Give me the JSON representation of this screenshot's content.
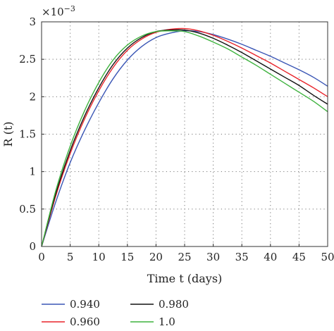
{
  "chart_data": {
    "type": "line",
    "xlabel": "Time t (days)",
    "ylabel": "R (t)",
    "y_multiplier": "×10",
    "y_exponent": "−3",
    "xlim": [
      0,
      50
    ],
    "ylim": [
      0,
      3
    ],
    "x_ticks": [
      0,
      5,
      10,
      15,
      20,
      25,
      30,
      35,
      40,
      45,
      50
    ],
    "y_ticks": [
      0,
      0.5,
      1,
      1.5,
      2,
      2.5,
      3
    ],
    "x_tick_labels": [
      "0",
      "5",
      "10",
      "15",
      "20",
      "25",
      "30",
      "35",
      "40",
      "45",
      "50"
    ],
    "y_tick_labels": [
      "0",
      "0.5",
      "1",
      "1.5",
      "2",
      "2.5",
      "3"
    ],
    "grid": true,
    "legend_position": "bottom",
    "x": [
      0,
      2.5,
      5,
      7.5,
      10,
      12.5,
      15,
      17.5,
      20,
      22.5,
      25,
      27.5,
      30,
      32.5,
      35,
      37.5,
      40,
      42.5,
      45,
      47.5,
      50
    ],
    "series": [
      {
        "name": "0.940",
        "color": "#3a56b5",
        "values": [
          0,
          0.6,
          1.12,
          1.55,
          1.92,
          2.24,
          2.49,
          2.67,
          2.79,
          2.85,
          2.88,
          2.87,
          2.83,
          2.77,
          2.7,
          2.62,
          2.54,
          2.45,
          2.36,
          2.26,
          2.14
        ]
      },
      {
        "name": "0.960",
        "color": "#e8232a",
        "values": [
          0,
          0.68,
          1.24,
          1.7,
          2.08,
          2.39,
          2.62,
          2.77,
          2.86,
          2.9,
          2.91,
          2.88,
          2.82,
          2.74,
          2.65,
          2.55,
          2.45,
          2.34,
          2.23,
          2.12,
          2.0
        ]
      },
      {
        "name": "0.980",
        "color": "#111111",
        "values": [
          0,
          0.71,
          1.28,
          1.74,
          2.12,
          2.43,
          2.65,
          2.79,
          2.87,
          2.89,
          2.89,
          2.85,
          2.78,
          2.69,
          2.59,
          2.48,
          2.37,
          2.26,
          2.15,
          2.02,
          1.9
        ]
      },
      {
        "name": "1.0",
        "color": "#3fb33f",
        "values": [
          0,
          0.75,
          1.34,
          1.81,
          2.19,
          2.49,
          2.69,
          2.81,
          2.87,
          2.88,
          2.87,
          2.81,
          2.73,
          2.64,
          2.53,
          2.42,
          2.3,
          2.18,
          2.06,
          1.94,
          1.8
        ]
      }
    ]
  }
}
